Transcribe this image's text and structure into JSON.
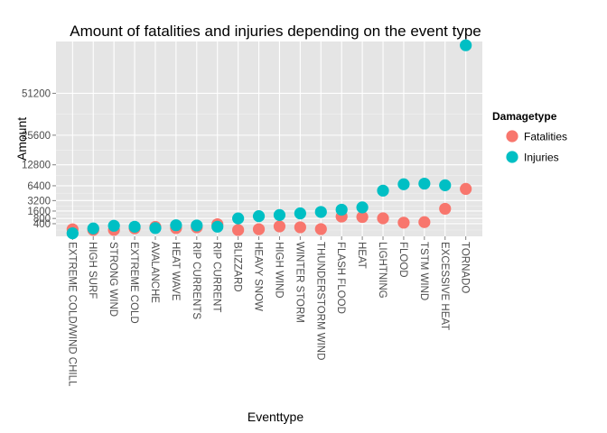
{
  "chart_data": {
    "type": "scatter",
    "title": "Amount of fatalities and injuries depending on the event type",
    "xlabel": "Eventtype",
    "ylabel": "Amount",
    "y_scale": "sqrt",
    "ylim": [
      0,
      95000
    ],
    "yticks": [
      400,
      800,
      1600,
      3200,
      6400,
      12800,
      25600,
      51200
    ],
    "ytick_labels": [
      "400",
      "800",
      "1600",
      "3200",
      "6400",
      "12800",
      "25600",
      "51200"
    ],
    "grid": true,
    "legend_title": "Damagetype",
    "legend_position": "right",
    "categories": [
      "EXTREME COLD/WIND CHILL",
      "HIGH SURF",
      "STRONG WIND",
      "EXTREME COLD",
      "AVALANCHE",
      "HEAT WAVE",
      "RIP CURRENTS",
      "RIP CURRENT",
      "BLIZZARD",
      "HEAVY SNOW",
      "HIGH WIND",
      "WINTER STORM",
      "THUNDERSTORM WIND",
      "FLASH FLOOD",
      "HEAT",
      "LIGHTNING",
      "FLOOD",
      "TSTM WIND",
      "EXCESSIVE HEAT",
      "TORNADO"
    ],
    "series": [
      {
        "name": "Fatalities",
        "color": "#F8766D",
        "values": [
          125,
          104,
          103,
          160,
          224,
          172,
          204,
          368,
          101,
          127,
          248,
          206,
          133,
          978,
          937,
          816,
          470,
          504,
          1903,
          5633
        ]
      },
      {
        "name": "Injuries",
        "color": "#00BFC4",
        "values": [
          24,
          156,
          280,
          231,
          170,
          309,
          297,
          232,
          805,
          1021,
          1137,
          1321,
          1488,
          1777,
          2100,
          5230,
          6789,
          6957,
          6525,
          91346
        ]
      }
    ]
  }
}
